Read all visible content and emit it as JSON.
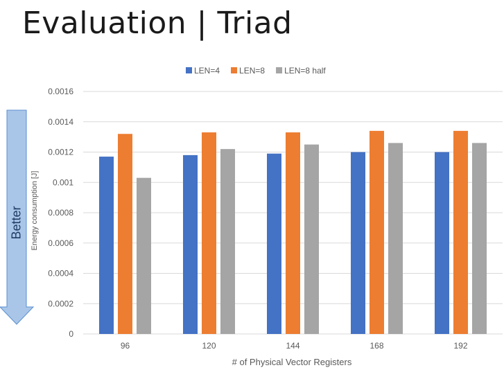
{
  "page": {
    "title": "Evaluation | Triad",
    "better_label": "Better"
  },
  "colors": {
    "arrow_fill": "#a9c6e8",
    "arrow_stroke": "#5b8fd0",
    "gridline": "#d9d9d9",
    "axis_text": "#595959"
  },
  "chart_data": {
    "type": "bar",
    "title": "",
    "xlabel": "# of Physical Vector Registers",
    "ylabel": "Energy consumption [J]",
    "categories": [
      "96",
      "120",
      "144",
      "168",
      "192"
    ],
    "ylim": [
      0,
      0.0016
    ],
    "yticks": [
      "0",
      "0.0002",
      "0.0004",
      "0.0006",
      "0.0008",
      "0.001",
      "0.0012",
      "0.0014",
      "0.0016"
    ],
    "grid": true,
    "legend_position": "top",
    "series": [
      {
        "name": "LEN=4",
        "color": "#4472c4",
        "values": [
          0.00117,
          0.00118,
          0.00119,
          0.0012,
          0.0012
        ]
      },
      {
        "name": "LEN=8",
        "color": "#ed7d31",
        "values": [
          0.00132,
          0.00133,
          0.00133,
          0.00134,
          0.00134
        ]
      },
      {
        "name": "LEN=8 half",
        "color": "#a5a5a5",
        "values": [
          0.00103,
          0.00122,
          0.00125,
          0.00126,
          0.00126
        ]
      }
    ]
  }
}
